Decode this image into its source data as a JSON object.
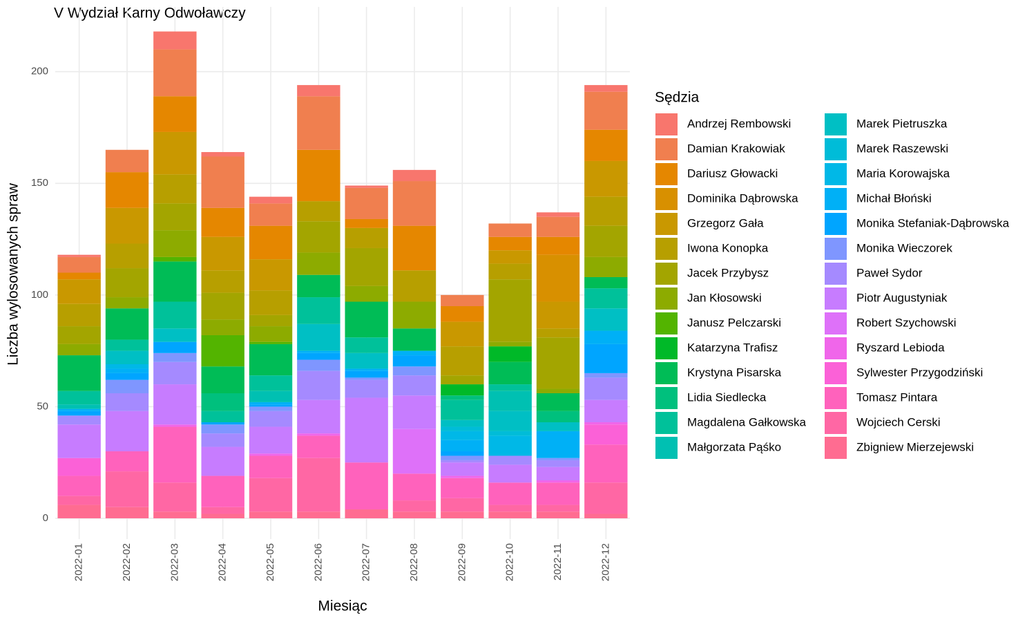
{
  "chart_data": {
    "type": "bar",
    "stacked": true,
    "title": "V Wydział Karny Odwoławczy",
    "x_label": "Miesiąc",
    "y_label": "Liczba wylosowanych spraw",
    "legend_title": "Sędzia",
    "categories": [
      "2022-01",
      "2022-02",
      "2022-03",
      "2022-04",
      "2022-05",
      "2022-06",
      "2022-07",
      "2022-08",
      "2022-09",
      "2022-10",
      "2022-11",
      "2022-12"
    ],
    "ylim": [
      -9.3,
      229
    ],
    "yticks": [
      0,
      50,
      100,
      150,
      200
    ],
    "grid": true,
    "legend": "right",
    "series": [
      {
        "name": "Andrzej Rembowski",
        "color": "#F8766D",
        "values": [
          1,
          0,
          8,
          2,
          3,
          5,
          1,
          5,
          0,
          0,
          2,
          3
        ]
      },
      {
        "name": "Damian Krakowiak",
        "color": "#F07F4F",
        "values": [
          7,
          10,
          21,
          23,
          10,
          24,
          14,
          20,
          5,
          6,
          9,
          17
        ]
      },
      {
        "name": "Dariusz Głowacki",
        "color": "#E58700",
        "values": [
          3,
          16,
          16,
          13,
          15,
          23,
          4,
          20,
          7,
          6,
          8,
          14
        ]
      },
      {
        "name": "Dominika Dąbrowska",
        "color": "#D89000",
        "values": [
          0,
          0,
          0,
          0,
          0,
          0,
          0,
          0,
          0,
          0,
          21,
          0
        ]
      },
      {
        "name": "Grzegorz Gała",
        "color": "#C99800",
        "values": [
          11,
          16,
          19,
          15,
          14,
          0,
          0,
          0,
          11,
          6,
          12,
          16
        ]
      },
      {
        "name": "Iwona Konopka",
        "color": "#B79F00",
        "values": [
          10,
          11,
          13,
          10,
          11,
          9,
          9,
          14,
          13,
          7,
          4,
          13
        ]
      },
      {
        "name": "Jacek Przybysz",
        "color": "#A3A500",
        "values": [
          8,
          13,
          12,
          12,
          5,
          14,
          17,
          0,
          4,
          28,
          23,
          14
        ]
      },
      {
        "name": "Jan Kłosowski",
        "color": "#8DAB00",
        "values": [
          5,
          5,
          12,
          7,
          7,
          10,
          7,
          12,
          0,
          2,
          2,
          9
        ]
      },
      {
        "name": "Janusz Pelczarski",
        "color": "#53B400",
        "values": [
          0,
          0,
          2,
          14,
          1,
          0,
          0,
          0,
          0,
          0,
          0,
          0
        ]
      },
      {
        "name": "Katarzyna Trafisz",
        "color": "#00B928",
        "values": [
          0,
          0,
          0,
          0,
          0,
          0,
          0,
          0,
          5,
          7,
          0,
          0
        ]
      },
      {
        "name": "Krystyna Pisarska",
        "color": "#00BC56",
        "values": [
          16,
          14,
          18,
          12,
          14,
          10,
          16,
          10,
          0,
          10,
          8,
          5
        ]
      },
      {
        "name": "Lidia Siedlecka",
        "color": "#00C07D",
        "values": [
          0,
          0,
          0,
          8,
          0,
          0,
          0,
          0,
          2,
          0,
          5,
          0
        ]
      },
      {
        "name": "Magdalena Gałkowska",
        "color": "#00C19A",
        "values": [
          6,
          5,
          12,
          5,
          7,
          12,
          7,
          0,
          9,
          3,
          0,
          9
        ]
      },
      {
        "name": "Małgorzata Pąśko",
        "color": "#00C0B2",
        "values": [
          2,
          0,
          0,
          0,
          5,
          0,
          0,
          0,
          0,
          9,
          0,
          0
        ]
      },
      {
        "name": "Marek Pietruszka",
        "color": "#00BFC4",
        "values": [
          0,
          6,
          6,
          0,
          0,
          12,
          7,
          0,
          3,
          9,
          4,
          10
        ]
      },
      {
        "name": "Marek Raszewski",
        "color": "#00BCD8",
        "values": [
          0,
          0,
          0,
          0,
          0,
          0,
          0,
          0,
          2,
          2,
          0,
          0
        ]
      },
      {
        "name": "Maria Korowajska",
        "color": "#00B8E7",
        "values": [
          0,
          2,
          0,
          0,
          0,
          0,
          0,
          0,
          4,
          9,
          0,
          0
        ]
      },
      {
        "name": "Michał Błoński",
        "color": "#00B0F6",
        "values": [
          1,
          2,
          0,
          0,
          1,
          1,
          1,
          2,
          5,
          0,
          12,
          6
        ]
      },
      {
        "name": "Monika Stefaniak-Dąbrowska",
        "color": "#00A5FF",
        "values": [
          2,
          3,
          5,
          1,
          1,
          3,
          3,
          5,
          2,
          0,
          0,
          13
        ]
      },
      {
        "name": "Monika Wieczorek",
        "color": "#7F96FF",
        "values": [
          0,
          6,
          4,
          4,
          2,
          5,
          1,
          4,
          2,
          0,
          1,
          2
        ]
      },
      {
        "name": "Paweł Sydor",
        "color": "#A58AFF",
        "values": [
          4,
          8,
          10,
          6,
          7,
          13,
          8,
          9,
          1,
          4,
          3,
          10
        ]
      },
      {
        "name": "Piotr Augustyniak",
        "color": "#C77CFF",
        "values": [
          15,
          18,
          18,
          13,
          12,
          15,
          29,
          15,
          6,
          8,
          6,
          10
        ]
      },
      {
        "name": "Robert Szychowski",
        "color": "#DE71F9",
        "values": [
          0,
          0,
          0,
          0,
          0,
          0,
          0,
          20,
          0,
          0,
          0,
          0
        ]
      },
      {
        "name": "Ryszard Lebioda",
        "color": "#F066EA",
        "values": [
          0,
          0,
          1,
          0,
          1,
          1,
          0,
          0,
          1,
          0,
          1,
          1
        ]
      },
      {
        "name": "Sylwester Przygodziński",
        "color": "#FB61D7",
        "values": [
          8,
          0,
          0,
          0,
          0,
          0,
          0,
          0,
          0,
          0,
          0,
          9
        ]
      },
      {
        "name": "Tomasz Pintara",
        "color": "#FF62BC",
        "values": [
          9,
          9,
          25,
          14,
          10,
          10,
          21,
          12,
          9,
          10,
          10,
          17
        ]
      },
      {
        "name": "Wojciech Cerski",
        "color": "#FF67A4",
        "values": [
          4,
          16,
          13,
          3,
          15,
          24,
          0,
          5,
          6,
          3,
          3,
          14
        ]
      },
      {
        "name": "Zbigniew Mierzejewski",
        "color": "#FF6C91",
        "values": [
          6,
          5,
          3,
          2,
          3,
          3,
          4,
          3,
          3,
          3,
          3,
          2
        ]
      }
    ]
  }
}
